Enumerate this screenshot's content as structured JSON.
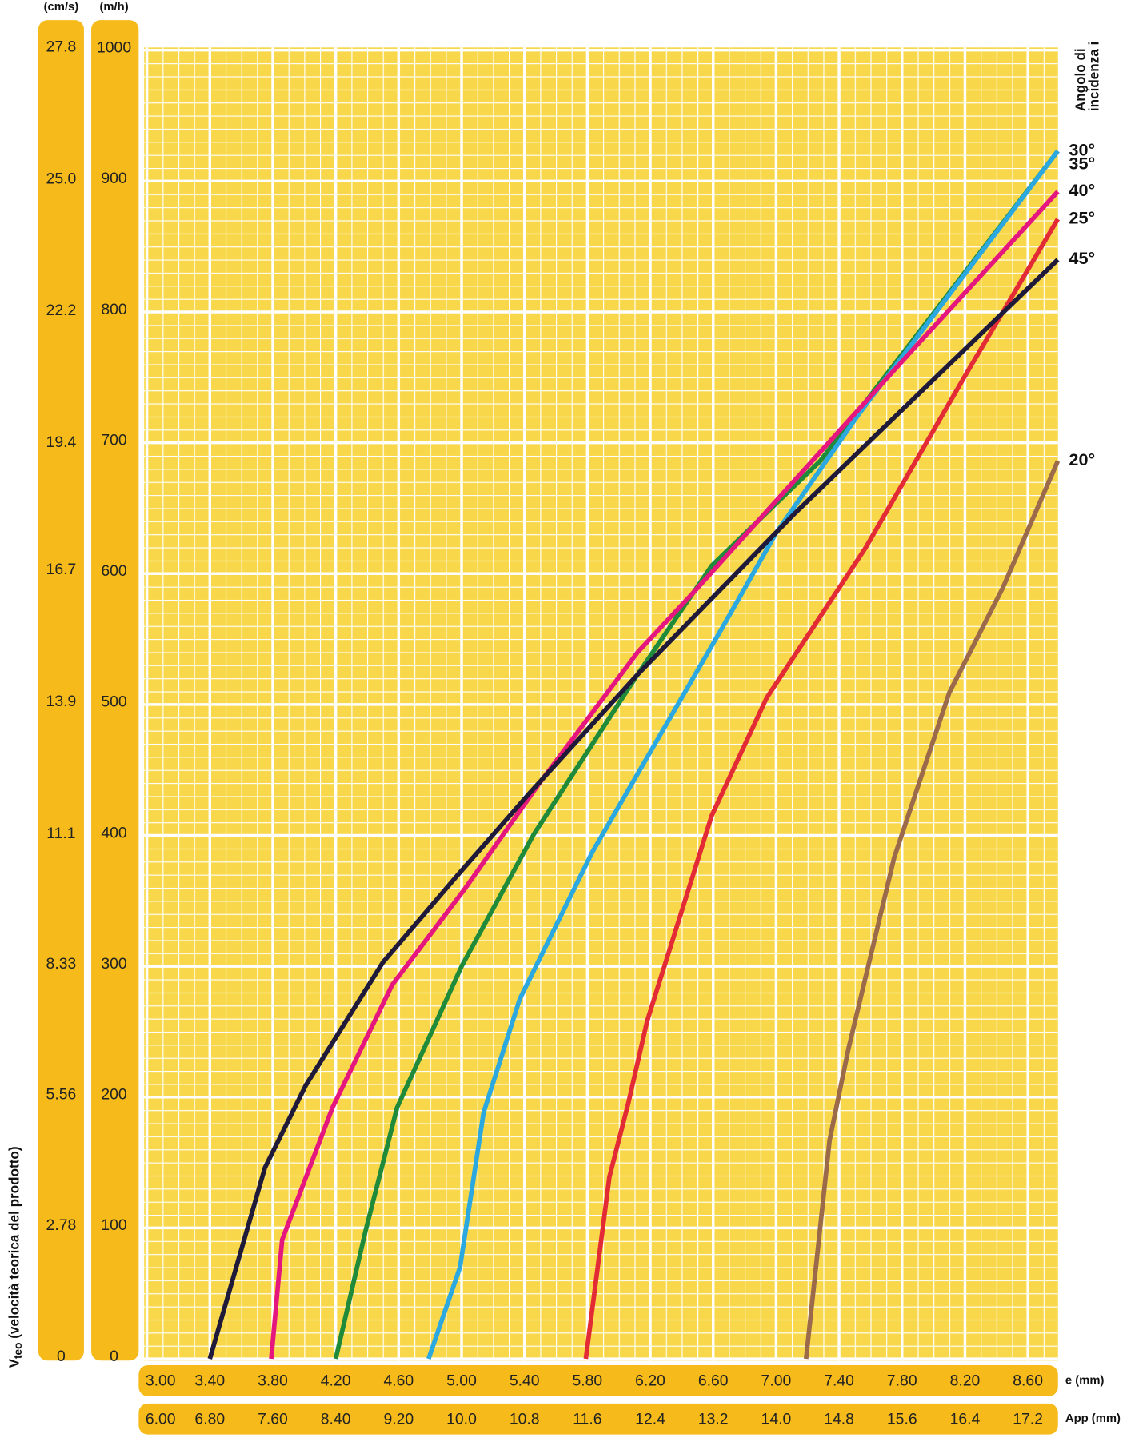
{
  "chart_data": {
    "type": "line",
    "ylabel": [
      "V",
      "teo",
      " (velocità teorica del prodotto)"
    ],
    "y_unit": "(m/h)",
    "y2_unit": "(cm/s)",
    "xlabel": "e (mm)",
    "x2label": "App (mm)",
    "legend_title": [
      "Angolo di",
      "incidenza i"
    ],
    "legend": "right",
    "grid": true,
    "xlim": [
      3.0,
      8.8
    ],
    "xticks": [
      {
        "value": 3,
        "label": "3.00"
      },
      {
        "value": 3.4,
        "label": "3.40"
      },
      {
        "value": 3.8,
        "label": "3.80"
      },
      {
        "value": 4.2,
        "label": "4.20"
      },
      {
        "value": 4.6,
        "label": "4.60"
      },
      {
        "value": 5,
        "label": "5.00"
      },
      {
        "value": 5.4,
        "label": "5.40"
      },
      {
        "value": 5.8,
        "label": "5.80"
      },
      {
        "value": 6.2,
        "label": "6.20"
      },
      {
        "value": 6.6,
        "label": "6.60"
      },
      {
        "value": 7,
        "label": "7.00"
      },
      {
        "value": 7.4,
        "label": "7.40"
      },
      {
        "value": 7.8,
        "label": "7.80"
      },
      {
        "value": 8.2,
        "label": "8.20"
      },
      {
        "value": 8.6,
        "label": "8.60"
      }
    ],
    "x2lim": [
      6.0,
      17.6
    ],
    "x2ticks": [
      {
        "value": 6,
        "label": "6.00"
      },
      {
        "value": 6.8,
        "label": "6.80"
      },
      {
        "value": 7.6,
        "label": "7.60"
      },
      {
        "value": 8.4,
        "label": "8.40"
      },
      {
        "value": 9.2,
        "label": "9.20"
      },
      {
        "value": 10,
        "label": "10.0"
      },
      10.8,
      11.6,
      12.4,
      13.2,
      {
        "value": 14,
        "label": "14.0"
      },
      14.8,
      15.6,
      16.4,
      17.2
    ],
    "ylim": [
      0,
      1000
    ],
    "yticks": [
      0,
      100,
      200,
      300,
      400,
      500,
      600,
      700,
      800,
      900,
      1000
    ],
    "y2lim": [
      0,
      27.78
    ],
    "y2ticks": [
      0,
      2.78,
      5.56,
      8.33,
      11.1,
      13.9,
      16.7,
      19.4,
      22.2,
      {
        "value": 25,
        "label": "25.0"
      },
      27.8
    ],
    "series": [
      {
        "name": "30°",
        "color": "#1f8a3a",
        "x": [
          4.2,
          4.39,
          4.59,
          5.0,
          5.46,
          6.12,
          6.59,
          7.28,
          8.79
        ],
        "values": [
          0,
          98,
          192,
          300,
          401,
          523,
          606,
          686,
          923
        ]
      },
      {
        "name": "35°",
        "color": "#2aa8df",
        "x": [
          4.79,
          4.99,
          5.14,
          5.37,
          5.83,
          6.65,
          7.0,
          7.52,
          8.79
        ],
        "values": [
          0,
          70,
          188,
          275,
          387,
          557,
          631,
          721,
          923
        ]
      },
      {
        "name": "40°",
        "color": "#e5177e",
        "x": [
          3.79,
          3.86,
          4.18,
          4.56,
          5.02,
          5.49,
          6.12,
          6.47,
          7.86,
          8.79
        ],
        "values": [
          0,
          91,
          192,
          286,
          359,
          439,
          540,
          585,
          770,
          892
        ]
      },
      {
        "name": "25°",
        "color": "#e32b35",
        "x": [
          5.79,
          5.94,
          6.06,
          6.18,
          6.59,
          6.94,
          7.57,
          8.21,
          8.79
        ],
        "values": [
          0,
          139,
          195,
          258,
          415,
          505,
          620,
          753,
          871
        ]
      },
      {
        "name": "45°",
        "color": "#1f1a3a",
        "x": [
          3.4,
          3.75,
          4.01,
          4.5,
          4.97,
          5.43,
          6.12,
          7.11,
          7.86,
          8.79
        ],
        "values": [
          0,
          146,
          209,
          303,
          369,
          432,
          523,
          645,
          732,
          840
        ]
      },
      {
        "name": "20°",
        "color": "#9b6a4a",
        "x": [
          7.19,
          7.34,
          7.46,
          7.75,
          8.1,
          8.44,
          8.79
        ],
        "values": [
          0,
          167,
          237,
          383,
          509,
          589,
          686
        ]
      }
    ]
  }
}
